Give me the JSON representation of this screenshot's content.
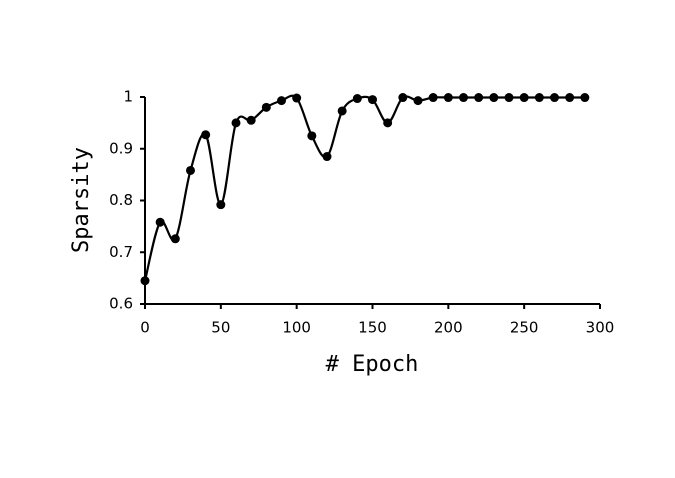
{
  "chart_data": {
    "type": "line",
    "xlabel": "# Epoch",
    "ylabel": "Sparsity",
    "x": [
      0,
      10,
      20,
      30,
      40,
      50,
      60,
      70,
      80,
      90,
      100,
      110,
      120,
      130,
      140,
      150,
      160,
      170,
      180,
      190,
      200,
      210,
      220,
      230,
      240,
      250,
      260,
      270,
      280,
      290
    ],
    "series": [
      {
        "name": "Sparsity",
        "color": "#000000",
        "smooth": true,
        "values": [
          0.645,
          0.758,
          0.726,
          0.858,
          0.927,
          0.792,
          0.95,
          0.955,
          0.98,
          0.993,
          0.998,
          0.925,
          0.885,
          0.973,
          0.997,
          0.995,
          0.95,
          0.999,
          0.993,
          0.999,
          0.999,
          0.999,
          0.999,
          0.999,
          0.999,
          0.999,
          0.999,
          0.999,
          0.999,
          0.999
        ]
      }
    ],
    "xlim": [
      0,
      300
    ],
    "xticks": [
      0,
      50,
      100,
      150,
      200,
      250,
      300
    ],
    "ylim": [
      0.6,
      1
    ],
    "yticks": [
      0.6,
      0.7,
      0.8,
      0.9,
      1
    ],
    "grid": false
  }
}
